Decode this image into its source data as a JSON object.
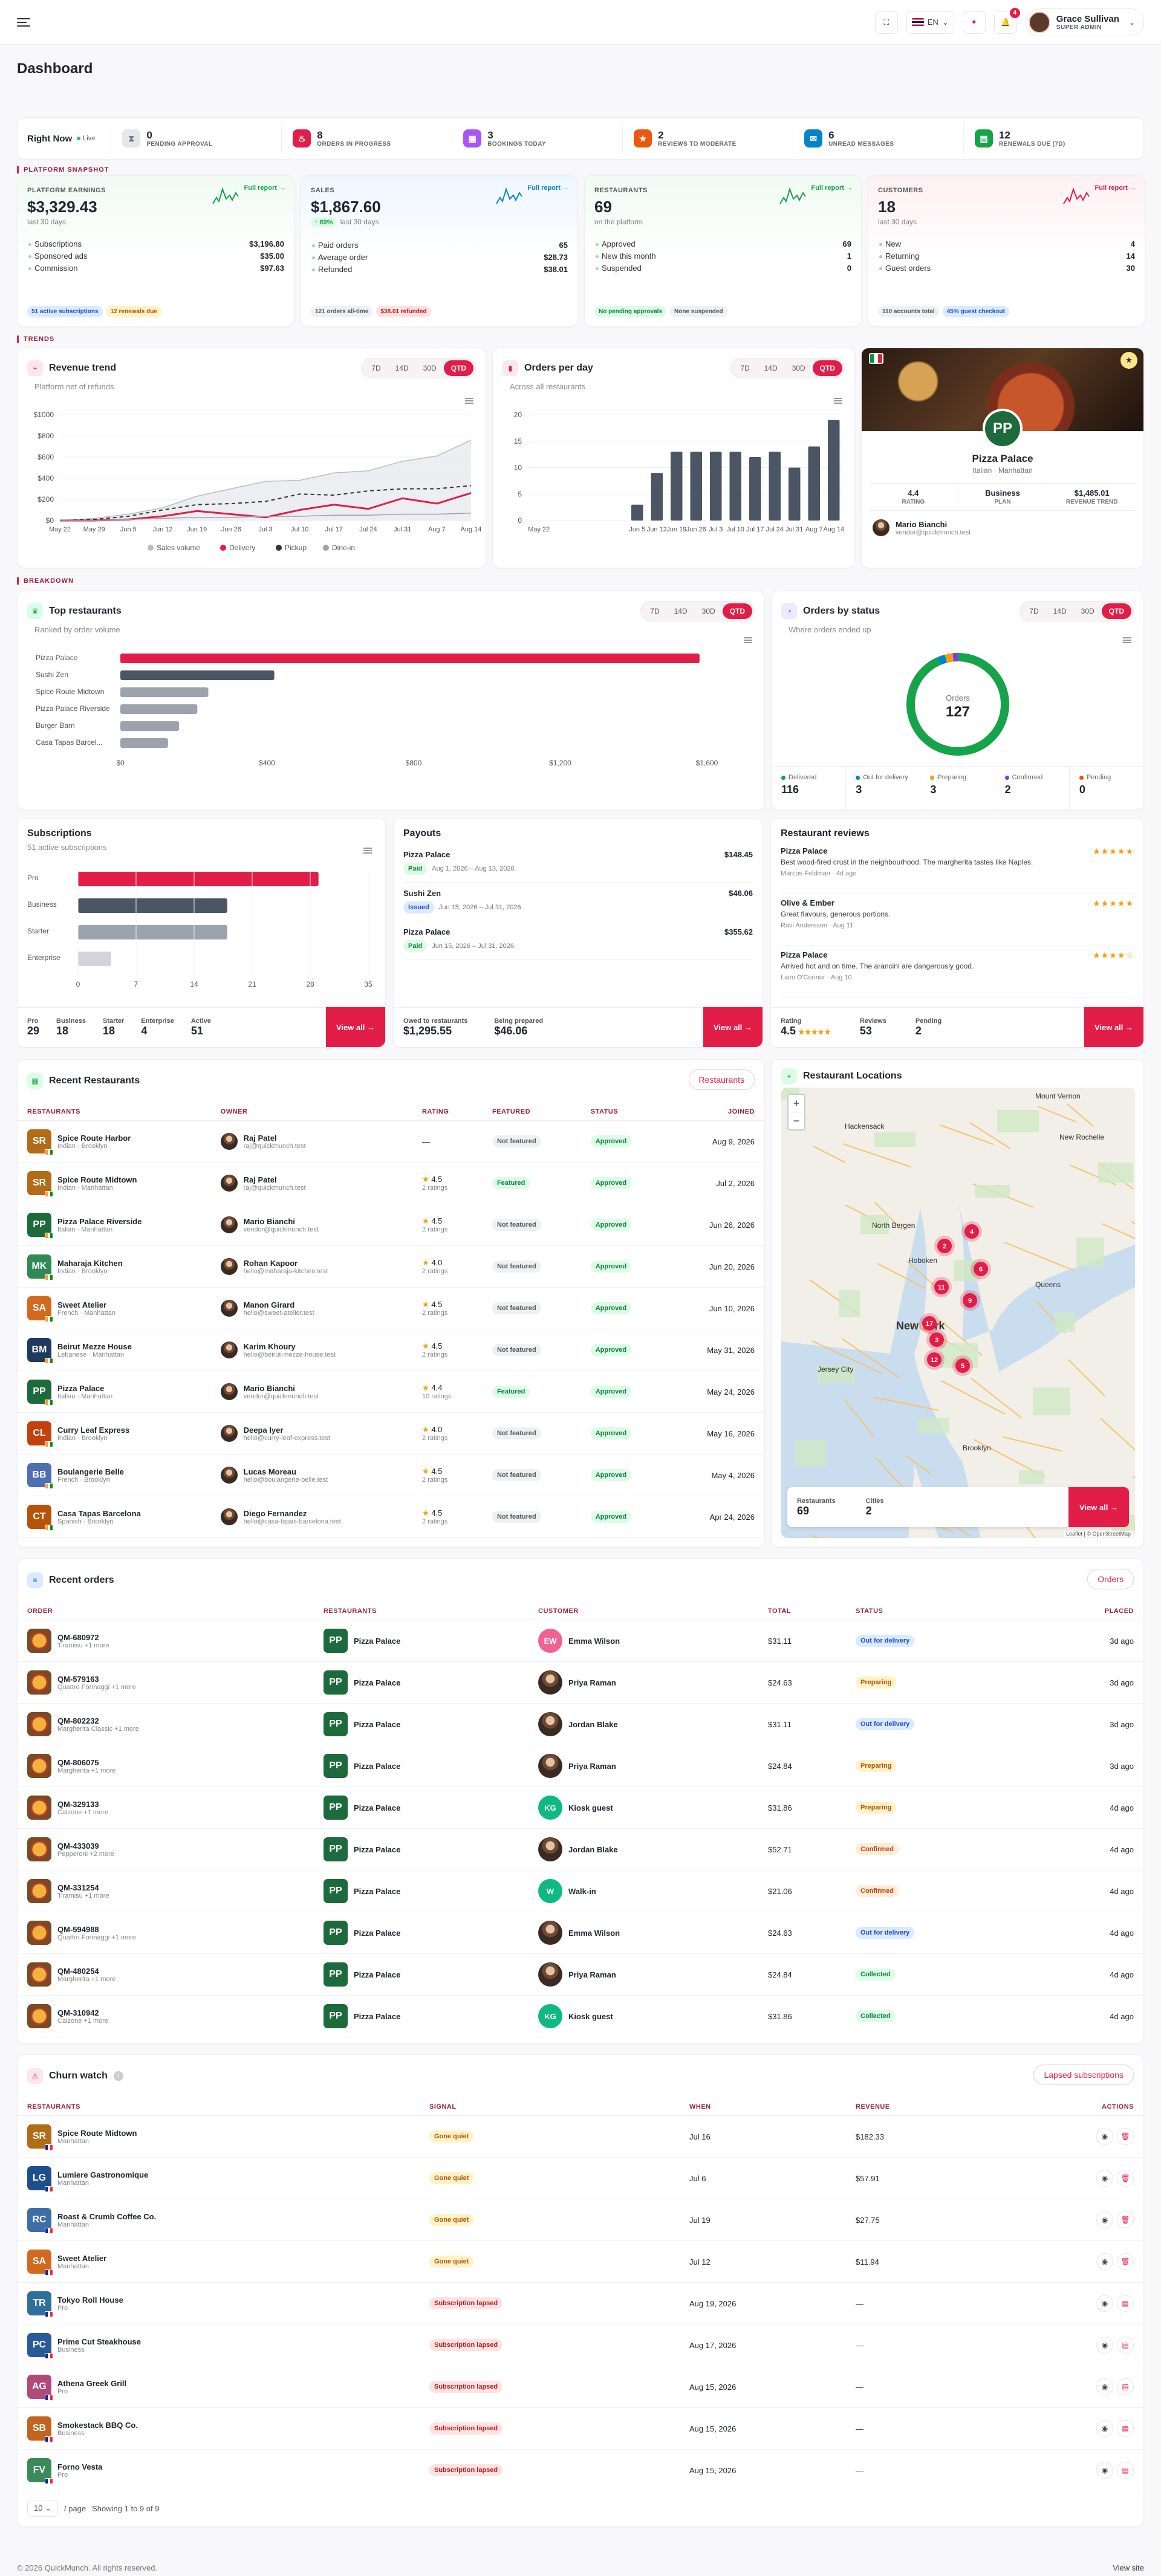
{
  "header": {
    "language": "EN",
    "notifications": "4",
    "user_name": "Grace Sullivan",
    "user_role": "SUPER ADMIN"
  },
  "page_title": "Dashboard",
  "right_now": {
    "label": "Right Now",
    "live": "Live",
    "items": [
      {
        "count": "0",
        "label": "PENDING APPROVAL",
        "color": "#e5e7eb",
        "icon": "hourglass-icon"
      },
      {
        "count": "8",
        "label": "ORDERS IN PROGRESS",
        "color": "#e11d48",
        "icon": "flame-icon"
      },
      {
        "count": "3",
        "label": "BOOKINGS TODAY",
        "color": "#a855f7",
        "icon": "calendar-icon"
      },
      {
        "count": "2",
        "label": "REVIEWS TO MODERATE",
        "color": "#ea580c",
        "icon": "star-icon"
      },
      {
        "count": "6",
        "label": "UNREAD MESSAGES",
        "color": "#0284c7",
        "icon": "message-icon"
      },
      {
        "count": "12",
        "label": "RENEWALS DUE (7D)",
        "color": "#16a34a",
        "icon": "receipt-icon"
      }
    ]
  },
  "snapshot_title": "PLATFORM SNAPSHOT",
  "snapshot": [
    {
      "label": "PLATFORM EARNINGS",
      "value": "$3,329.43",
      "sub": "last 30 days",
      "link": "Full report →",
      "accent": "#16a34a",
      "rows": [
        [
          "Subscriptions",
          "$3,196.80"
        ],
        [
          "Sponsored ads",
          "$35.00"
        ],
        [
          "Commission",
          "$97.63"
        ]
      ],
      "pills": [
        [
          "51 active subscriptions",
          "#dbeafe",
          "#1d4ed8"
        ],
        [
          "12 renewals due",
          "#fef3c7",
          "#b45309"
        ]
      ]
    },
    {
      "label": "SALES",
      "value": "$1,867.60",
      "gain": "↑ 89%",
      "sub": "last 30 days",
      "link": "Full report →",
      "accent": "#0284c7",
      "rows": [
        [
          "Paid orders",
          "65"
        ],
        [
          "Average order",
          "$28.73"
        ],
        [
          "Refunded",
          "$38.01"
        ]
      ],
      "pills": [
        [
          "121 orders all-time",
          "#eef0f3",
          "#555"
        ],
        [
          "$38.01 refunded",
          "#fee2e2",
          "#b91c1c"
        ]
      ]
    },
    {
      "label": "RESTAURANTS",
      "value": "69",
      "sub": "on the platform",
      "link": "Full report →",
      "accent": "#16a34a",
      "rows": [
        [
          "Approved",
          "69"
        ],
        [
          "New this month",
          "1"
        ],
        [
          "Suspended",
          "0"
        ]
      ],
      "pills": [
        [
          "No pending approvals",
          "#dcfce7",
          "#15803d"
        ],
        [
          "None suspended",
          "#eef0f3",
          "#555"
        ]
      ]
    },
    {
      "label": "CUSTOMERS",
      "value": "18",
      "sub": "last 30 days",
      "link": "Full report →",
      "accent": "#e11d48",
      "rows": [
        [
          "New",
          "4"
        ],
        [
          "Returning",
          "14"
        ],
        [
          "Guest orders",
          "30"
        ]
      ],
      "pills": [
        [
          "110 accounts total",
          "#eef0f3",
          "#555"
        ],
        [
          "45% guest checkout",
          "#dbeafe",
          "#1d4ed8"
        ]
      ]
    }
  ],
  "trends_title": "TRENDS",
  "ranges": [
    "7D",
    "14D",
    "30D",
    "QTD"
  ],
  "revenue": {
    "title": "Revenue trend",
    "sub": "Platform net of refunds",
    "legend": [
      "Sales volume",
      "Delivery",
      "Pickup",
      "Dine-in"
    ]
  },
  "orders_day": {
    "title": "Orders per day",
    "sub": "Across all restaurants"
  },
  "featured": {
    "name": "Pizza Palace",
    "sub": "Italian · Manhattan",
    "badge": "PP",
    "stats": [
      [
        "4.4",
        "RATING"
      ],
      [
        "Business",
        "PLAN"
      ],
      [
        "$1,485.01",
        "REVENUE TREND"
      ]
    ],
    "owner": "Mario Bianchi",
    "owner_email": "vendor@quickmunch.test"
  },
  "breakdown_title": "BREAKDOWN",
  "top_restaurants": {
    "title": "Top restaurants",
    "sub": "Ranked by order volume"
  },
  "status": {
    "title": "Orders by status",
    "sub": "Where orders ended up",
    "center_label": "Orders",
    "center_value": "127",
    "items": [
      [
        "Delivered",
        "116",
        "#16a34a"
      ],
      [
        "Out for delivery",
        "3",
        "#0284c7"
      ],
      [
        "Preparing",
        "3",
        "#f59e0b"
      ],
      [
        "Confirmed",
        "2",
        "#7c3aed"
      ],
      [
        "Pending",
        "0",
        "#ea580c"
      ]
    ]
  },
  "subscriptions": {
    "title": "Subscriptions",
    "sub": "51 active subscriptions",
    "footer": [
      [
        "Pro",
        "29"
      ],
      [
        "Business",
        "18"
      ],
      [
        "Starter",
        "18"
      ],
      [
        "Enterprise",
        "4"
      ],
      [
        "Active",
        "51"
      ]
    ],
    "view_all": "View all →"
  },
  "payouts": {
    "title": "Payouts",
    "items": [
      [
        "Pizza Palace",
        "Paid",
        "Aug 1, 2026 – Aug 13, 2026",
        "$148.45"
      ],
      [
        "Sushi Zen",
        "Issued",
        "Jun 15, 2026 – Jul 31, 2026",
        "$46.06"
      ],
      [
        "Pizza Palace",
        "Paid",
        "Jun 15, 2026 – Jul 31, 2026",
        "$355.62"
      ]
    ],
    "owed_label": "Owed to restaurants",
    "owed": "$1,295.55",
    "prep_label": "Being prepared",
    "prep": "$46.06",
    "view_all": "View all →"
  },
  "reviews": {
    "title": "Restaurant reviews",
    "items": [
      [
        "Pizza Palace",
        "Best wood-fired crust in the neighbourhood. The margherita tastes like Naples.",
        "Marcus Feldman · 4d ago",
        "★★★★★"
      ],
      [
        "Olive & Ember",
        "Great flavours, generous portions.",
        "Ravi Andersson · Aug 11",
        "★★★★★"
      ],
      [
        "Pizza Palace",
        "Arrived hot and on time. The arancini are dangerously good.",
        "Liam O'Connor · Aug 10",
        "★★★★☆"
      ]
    ],
    "footer": [
      [
        "Rating",
        "4.5"
      ],
      [
        "Reviews",
        "53"
      ],
      [
        "Pending",
        "2"
      ]
    ],
    "view_all": "View all →"
  },
  "recent_restaurants": {
    "title": "Recent Restaurants",
    "button": "Restaurants",
    "cols": [
      "RESTAURANTS",
      "OWNER",
      "RATING",
      "FEATURED",
      "STATUS",
      "JOINED"
    ],
    "rows": [
      [
        "SR",
        "#b26b16",
        "Spice Route Harbor",
        "Indian · Brooklyn",
        "Raj Patel",
        "raj@quickmunch.test",
        "—",
        "",
        "Not featured",
        "Approved",
        "Aug 9, 2026"
      ],
      [
        "SR",
        "#b26b16",
        "Spice Route Midtown",
        "Indian · Manhattan",
        "Raj Patel",
        "raj@quickmunch.test",
        "4.5",
        "2 ratings",
        "Featured",
        "Approved",
        "Jul 2, 2026"
      ],
      [
        "PP",
        "#1d6b3c",
        "Pizza Palace Riverside",
        "Italian · Manhattan",
        "Mario Bianchi",
        "vendor@quickmunch.test",
        "4.5",
        "2 ratings",
        "Not featured",
        "Approved",
        "Jun 26, 2026"
      ],
      [
        "MK",
        "#2f8a56",
        "Maharaja Kitchen",
        "Indian · Brooklyn",
        "Rohan Kapoor",
        "hello@maharaja-kitchen.test",
        "4.0",
        "2 ratings",
        "Not featured",
        "Approved",
        "Jun 20, 2026"
      ],
      [
        "SA",
        "#d2691e",
        "Sweet Atelier",
        "French · Manhattan",
        "Manon Girard",
        "hello@sweet-atelier.test",
        "4.5",
        "2 ratings",
        "Not featured",
        "Approved",
        "Jun 10, 2026"
      ],
      [
        "BM",
        "#1e3a5f",
        "Beirut Mezze House",
        "Lebanese · Manhattan",
        "Karim Khoury",
        "hello@beirut-mezze-house.test",
        "4.5",
        "2 ratings",
        "Not featured",
        "Approved",
        "May 31, 2026"
      ],
      [
        "PP",
        "#1d6b3c",
        "Pizza Palace",
        "Italian · Manhattan",
        "Mario Bianchi",
        "vendor@quickmunch.test",
        "4.4",
        "10 ratings",
        "Featured",
        "Approved",
        "May 24, 2026"
      ],
      [
        "CL",
        "#c2410c",
        "Curry Leaf Express",
        "Indian · Brooklyn",
        "Deepa Iyer",
        "hello@curry-leaf-express.test",
        "4.0",
        "2 ratings",
        "Not featured",
        "Approved",
        "May 16, 2026"
      ],
      [
        "BB",
        "#4f6fb5",
        "Boulangerie Belle",
        "French · Brooklyn",
        "Lucas Moreau",
        "hello@boulangerie-belle.test",
        "4.5",
        "2 ratings",
        "Not featured",
        "Approved",
        "May 4, 2026"
      ],
      [
        "CT",
        "#b45309",
        "Casa Tapas Barcelona",
        "Spanish · Brooklyn",
        "Diego Fernandez",
        "hello@casa-tapas-barcelona.test",
        "4.5",
        "2 ratings",
        "Not featured",
        "Approved",
        "Apr 24, 2026"
      ]
    ]
  },
  "locations": {
    "title": "Restaurant Locations",
    "restaurants_label": "Restaurants",
    "restaurants": "69",
    "cities_label": "Cities",
    "cities": "2",
    "view_all": "View all →",
    "attribution": "Leaflet | © OpenStreetMap",
    "map_labels": [
      "Hackensack",
      "Mount Vernon",
      "North Bergen",
      "Hoboken",
      "New York",
      "Jersey City",
      "Queens",
      "Brooklyn",
      "New Rochelle"
    ],
    "clusters": [
      "4",
      "2",
      "6",
      "11",
      "9",
      "17",
      "3",
      "12",
      "5"
    ]
  },
  "recent_orders": {
    "title": "Recent orders",
    "button": "Orders",
    "cols": [
      "ORDER",
      "RESTAURANTS",
      "CUSTOMER",
      "TOTAL",
      "STATUS",
      "PLACED"
    ],
    "rows": [
      [
        "QM-680972",
        "Tiramisu +1 more",
        "Pizza Palace",
        "EW",
        "Emma Wilson",
        "$31.11",
        "Out for delivery",
        "3d ago"
      ],
      [
        "QM-579163",
        "Quattro Formaggi +1 more",
        "Pizza Palace",
        "",
        "Priya Raman",
        "$24.63",
        "Preparing",
        "3d ago"
      ],
      [
        "QM-802232",
        "Margherita Classic +1 more",
        "Pizza Palace",
        "",
        "Jordan Blake",
        "$31.11",
        "Out for delivery",
        "3d ago"
      ],
      [
        "QM-806075",
        "Margherita +1 more",
        "Pizza Palace",
        "",
        "Priya Raman",
        "$24.84",
        "Preparing",
        "3d ago"
      ],
      [
        "QM-329133",
        "Calzone +1 more",
        "Pizza Palace",
        "KG",
        "Kiosk guest",
        "$31.86",
        "Preparing",
        "4d ago"
      ],
      [
        "QM-433039",
        "Pepperoni +2 more",
        "Pizza Palace",
        "",
        "Jordan Blake",
        "$52.71",
        "Confirmed",
        "4d ago"
      ],
      [
        "QM-331254",
        "Tiramisu +1 more",
        "Pizza Palace",
        "W",
        "Walk-in",
        "$21.06",
        "Confirmed",
        "4d ago"
      ],
      [
        "QM-594988",
        "Quattro Formaggi +1 more",
        "Pizza Palace",
        "",
        "Emma Wilson",
        "$24.63",
        "Out for delivery",
        "4d ago"
      ],
      [
        "QM-480254",
        "Margherita +1 more",
        "Pizza Palace",
        "",
        "Priya Raman",
        "$24.84",
        "Collected",
        "4d ago"
      ],
      [
        "QM-310942",
        "Calzone +1 more",
        "Pizza Palace",
        "KG",
        "Kiosk guest",
        "$31.86",
        "Collected",
        "4d ago"
      ]
    ]
  },
  "churn": {
    "title": "Churn watch",
    "button": "Lapsed subscriptions",
    "cols": [
      "RESTAURANTS",
      "SIGNAL",
      "WHEN",
      "REVENUE",
      "ACTIONS"
    ],
    "rows": [
      [
        "SR",
        "#b26b16",
        "Spice Route Midtown",
        "Manhattan",
        "Gone quiet",
        "Jul 16",
        "$182.33"
      ],
      [
        "LG",
        "#1e4f8a",
        "Lumiere Gastronomique",
        "Manhattan",
        "Gone quiet",
        "Jul 6",
        "$57.91"
      ],
      [
        "RC",
        "#3f6ea6",
        "Roast & Crumb Coffee Co.",
        "Manhattan",
        "Gone quiet",
        "Jul 19",
        "$27.75"
      ],
      [
        "SA",
        "#d2691e",
        "Sweet Atelier",
        "Manhattan",
        "Gone quiet",
        "Jul 12",
        "$11.94"
      ],
      [
        "TR",
        "#2f6f9a",
        "Tokyo Roll House",
        "Pro",
        "Subscription lapsed",
        "Aug 19, 2026",
        "—"
      ],
      [
        "PC",
        "#2b5a9a",
        "Prime Cut Steakhouse",
        "Business",
        "Subscription lapsed",
        "Aug 17, 2026",
        "—"
      ],
      [
        "AG",
        "#b04a7a",
        "Athena Greek Grill",
        "Pro",
        "Subscription lapsed",
        "Aug 15, 2026",
        "—"
      ],
      [
        "SB",
        "#c2631e",
        "Smokestack BBQ Co.",
        "Business",
        "Subscription lapsed",
        "Aug 15, 2026",
        "—"
      ],
      [
        "FV",
        "#3c8a5a",
        "Forno Vesta",
        "Pro",
        "Subscription lapsed",
        "Aug 15, 2026",
        "—"
      ]
    ],
    "per_page": "10",
    "per_page_label": "/ page",
    "showing": "Showing 1 to 9 of 9"
  },
  "footer": {
    "copyright": "© 2026 QuickMunch. All rights reserved.",
    "view_site": "View site"
  },
  "chart_data": [
    {
      "type": "line",
      "title": "Revenue trend",
      "x": [
        "May 22",
        "May 29",
        "Jun 5",
        "Jun 12",
        "Jun 19",
        "Jun 26",
        "Jul 3",
        "Jul 10",
        "Jul 17",
        "Jul 24",
        "Jul 31",
        "Aug 7",
        "Aug 14"
      ],
      "ylim": [
        0,
        1000
      ],
      "yticks": [
        "$0",
        "$200",
        "$400",
        "$600",
        "$800",
        "$1000"
      ],
      "series": [
        {
          "name": "Sales volume",
          "values": [
            0,
            20,
            60,
            120,
            230,
            300,
            370,
            380,
            450,
            470,
            560,
            610,
            760
          ]
        },
        {
          "name": "Delivery",
          "values": [
            0,
            0,
            10,
            40,
            90,
            60,
            30,
            100,
            150,
            110,
            210,
            160,
            260
          ]
        },
        {
          "name": "Pickup",
          "values": [
            0,
            10,
            40,
            100,
            150,
            160,
            180,
            250,
            240,
            280,
            300,
            300,
            330
          ]
        },
        {
          "name": "Dine-in",
          "values": [
            0,
            0,
            10,
            20,
            30,
            30,
            40,
            40,
            50,
            50,
            60,
            60,
            70
          ]
        }
      ]
    },
    {
      "type": "bar",
      "title": "Orders per day",
      "categories": [
        "May 22",
        "",
        "",
        "",
        "",
        "Jun 5",
        "Jun 12",
        "Jun 19",
        "Jun 26",
        "Jul 3",
        "Jul 10",
        "Jul 17",
        "Jul 24",
        "Jul 31",
        "Aug 7",
        "Aug 14"
      ],
      "values": [
        0,
        0,
        0,
        0,
        0,
        3,
        9,
        13,
        13,
        13,
        13,
        12,
        13,
        10,
        14,
        19
      ],
      "ylim": [
        0,
        20
      ],
      "yticks": [
        "0",
        "5",
        "10",
        "15",
        "20"
      ]
    },
    {
      "type": "bar",
      "title": "Top restaurants",
      "orientation": "horizontal",
      "categories": [
        "Pizza Palace",
        "Sushi Zen",
        "Spice Route Midtown",
        "Pizza Palace Riverside",
        "Burger Barn",
        "Casa Tapas Barcel..."
      ],
      "values": [
        1580,
        420,
        240,
        210,
        160,
        130
      ],
      "xlim": [
        0,
        1600
      ],
      "xticks": [
        "$0",
        "$400",
        "$800",
        "$1,200",
        "$1,600"
      ]
    },
    {
      "type": "pie",
      "title": "Orders by status",
      "categories": [
        "Delivered",
        "Out for delivery",
        "Preparing",
        "Confirmed",
        "Pending"
      ],
      "values": [
        116,
        3,
        3,
        2,
        0
      ]
    },
    {
      "type": "bar",
      "title": "Subscriptions",
      "orientation": "horizontal",
      "categories": [
        "Pro",
        "Business",
        "Starter",
        "Enterprise"
      ],
      "values": [
        29,
        18,
        18,
        4
      ],
      "xlim": [
        0,
        35
      ],
      "xticks": [
        "0",
        "7",
        "14",
        "21",
        "28",
        "35"
      ]
    }
  ]
}
